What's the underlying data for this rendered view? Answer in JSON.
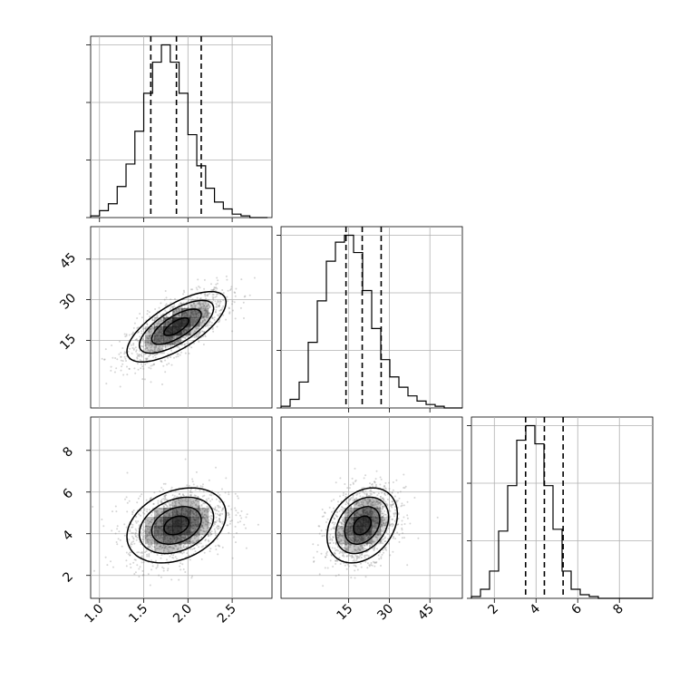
{
  "chart_data": {
    "type": "corner",
    "title": "",
    "parameters": [
      {
        "index": 0,
        "range": [
          0.9,
          2.95
        ],
        "ticks": [
          1.0,
          1.5,
          2.0,
          2.5
        ],
        "tick_labels": [
          "1.0",
          "1.5",
          "2.0",
          "2.5"
        ],
        "quantiles": [
          1.58,
          1.87,
          2.15
        ],
        "hist": {
          "edges_start": 0.9,
          "bin_width": 0.1,
          "counts": [
            1,
            4,
            8,
            18,
            31,
            50,
            72,
            90,
            100,
            90,
            72,
            48,
            30,
            17,
            9,
            5,
            2,
            1,
            0,
            0
          ]
        },
        "mean": 1.87,
        "sd": 0.28
      },
      {
        "index": 1,
        "range": [
          -10,
          57
        ],
        "ticks": [
          15,
          30,
          45
        ],
        "tick_labels": [
          "15",
          "30",
          "45"
        ],
        "quantiles": [
          14,
          20,
          27
        ],
        "hist": {
          "edges_start": -10,
          "bin_width": 3.35,
          "counts": [
            1,
            5,
            15,
            38,
            62,
            85,
            96,
            100,
            90,
            68,
            46,
            28,
            18,
            12,
            7,
            4,
            2,
            1,
            0,
            0
          ]
        },
        "mean": 20,
        "sd": 6.5
      },
      {
        "index": 2,
        "range": [
          0.9,
          9.6
        ],
        "ticks": [
          2,
          4,
          6,
          8
        ],
        "tick_labels": [
          "2",
          "4",
          "6",
          "8"
        ],
        "quantiles": [
          3.5,
          4.4,
          5.3
        ],
        "hist": {
          "edges_start": 0.9,
          "bin_width": 0.435,
          "counts": [
            1,
            5,
            15,
            37,
            62,
            87,
            95,
            85,
            62,
            38,
            15,
            5,
            2,
            1,
            0,
            0,
            0,
            0,
            0,
            0
          ]
        },
        "mean": 4.4,
        "sd": 0.9
      }
    ],
    "pairs": [
      {
        "x": 0,
        "y": 1,
        "correlation": 0.7
      },
      {
        "x": 0,
        "y": 2,
        "correlation": 0.3
      },
      {
        "x": 1,
        "y": 2,
        "correlation": 0.3
      }
    ],
    "contour_levels_sigma": [
      0.5,
      1.0,
      1.5,
      2.0
    ],
    "grid": true,
    "legend": "none",
    "colors": {
      "lines": "#000000",
      "grid": "#b0b0b0",
      "points": "#888888",
      "density": "#000000"
    }
  }
}
